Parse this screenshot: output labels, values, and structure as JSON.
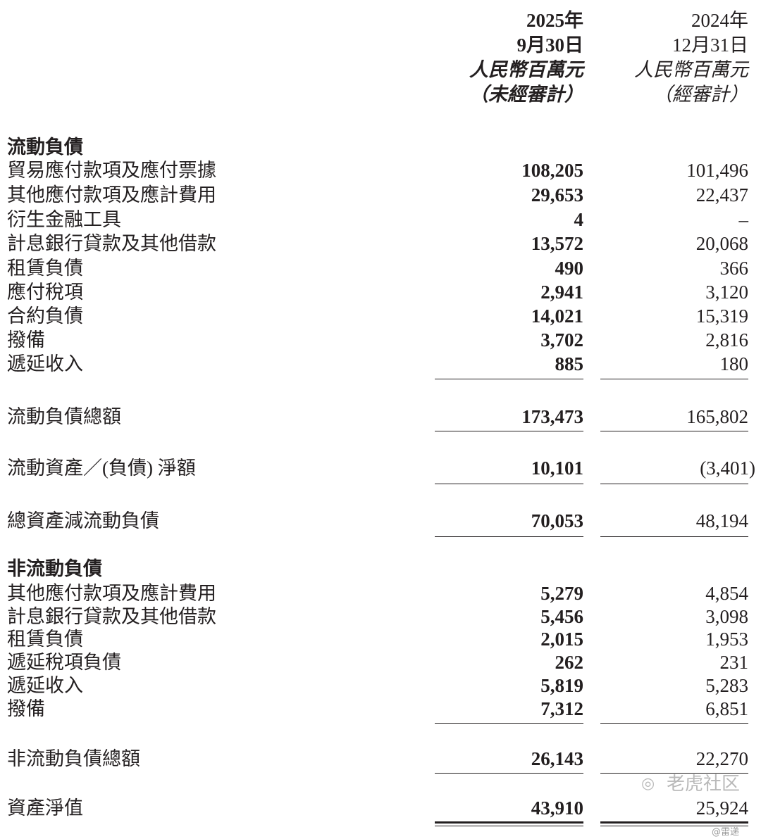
{
  "header": {
    "col1": [
      "2025年",
      "9月30日",
      "人民幣百萬元",
      "（未經審計）"
    ],
    "col2": [
      "2024年",
      "12月31日",
      "人民幣百萬元",
      "（經審計）"
    ]
  },
  "rows": [
    {
      "label": "流動負債",
      "section": true
    },
    {
      "label": "貿易應付款項及應付票據",
      "v1": "108,205",
      "v2": "101,496"
    },
    {
      "label": "其他應付款項及應計費用",
      "v1": "29,653",
      "v2": "22,437"
    },
    {
      "label": "衍生金融工具",
      "v1": "4",
      "v2": "–"
    },
    {
      "label": "計息銀行貸款及其他借款",
      "v1": "13,572",
      "v2": "20,068"
    },
    {
      "label": "租賃負債",
      "v1": "490",
      "v2": "366"
    },
    {
      "label": "應付稅項",
      "v1": "2,941",
      "v2": "3,120"
    },
    {
      "label": "合約負債",
      "v1": "14,021",
      "v2": "15,319"
    },
    {
      "label": "撥備",
      "v1": "3,702",
      "v2": "2,816"
    },
    {
      "label": "遞延收入",
      "v1": "885",
      "v2": "180"
    },
    {
      "label": "流動負債總額",
      "v1": "173,473",
      "v2": "165,802"
    },
    {
      "label": "流動資產／(負債) 淨額",
      "v1": "10,101",
      "v2": "(3,401)"
    },
    {
      "label": "總資產減流動負債",
      "v1": "70,053",
      "v2": "48,194"
    },
    {
      "label": "非流動負債",
      "section": true
    },
    {
      "label": "其他應付款項及應計費用",
      "v1": "5,279",
      "v2": "4,854"
    },
    {
      "label": "計息銀行貸款及其他借款",
      "v1": "5,456",
      "v2": "3,098"
    },
    {
      "label": "租賃負債",
      "v1": "2,015",
      "v2": "1,953"
    },
    {
      "label": "遞延稅項負債",
      "v1": "262",
      "v2": "231"
    },
    {
      "label": "遞延收入",
      "v1": "5,819",
      "v2": "5,283"
    },
    {
      "label": "撥備",
      "v1": "7,312",
      "v2": "6,851"
    },
    {
      "label": "非流動負債總額",
      "v1": "26,143",
      "v2": "22,270"
    },
    {
      "label": "資產淨值",
      "v1": "43,910",
      "v2": "25,924"
    }
  ],
  "watermark": {
    "brand": "老虎社区",
    "user": "@雷递",
    "icon": "tiger-logo-icon"
  }
}
